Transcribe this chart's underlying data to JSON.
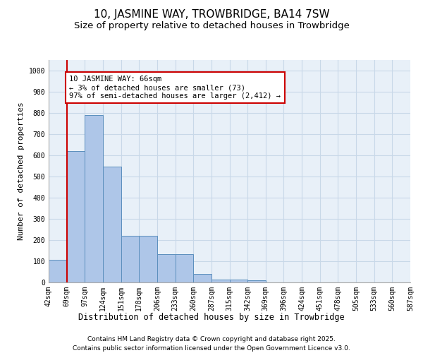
{
  "title1": "10, JASMINE WAY, TROWBRIDGE, BA14 7SW",
  "title2": "Size of property relative to detached houses in Trowbridge",
  "xlabel": "Distribution of detached houses by size in Trowbridge",
  "ylabel": "Number of detached properties",
  "bar_values": [
    107,
    620,
    790,
    545,
    220,
    220,
    135,
    135,
    40,
    15,
    12,
    10,
    0,
    0,
    0,
    0,
    0,
    0,
    0,
    0
  ],
  "categories": [
    "42sqm",
    "69sqm",
    "97sqm",
    "124sqm",
    "151sqm",
    "178sqm",
    "206sqm",
    "233sqm",
    "260sqm",
    "287sqm",
    "315sqm",
    "342sqm",
    "369sqm",
    "396sqm",
    "424sqm",
    "451sqm",
    "478sqm",
    "505sqm",
    "533sqm",
    "560sqm",
    "587sqm"
  ],
  "bar_color": "#aec6e8",
  "bar_edgecolor": "#5b8fbd",
  "vline_color": "#cc0000",
  "annotation_box_text": "10 JASMINE WAY: 66sqm\n← 3% of detached houses are smaller (73)\n97% of semi-detached houses are larger (2,412) →",
  "annotation_box_color": "#cc0000",
  "annotation_box_facecolor": "white",
  "ylim": [
    0,
    1050
  ],
  "yticks": [
    0,
    100,
    200,
    300,
    400,
    500,
    600,
    700,
    800,
    900,
    1000
  ],
  "grid_color": "#c8d8e8",
  "footer1": "Contains HM Land Registry data © Crown copyright and database right 2025.",
  "footer2": "Contains public sector information licensed under the Open Government Licence v3.0.",
  "bg_color": "#e8f0f8",
  "fig_bg_color": "#ffffff",
  "title1_fontsize": 11,
  "title2_fontsize": 9.5,
  "xlabel_fontsize": 8.5,
  "ylabel_fontsize": 8,
  "tick_fontsize": 7,
  "footer_fontsize": 6.5,
  "ann_fontsize": 7.5
}
